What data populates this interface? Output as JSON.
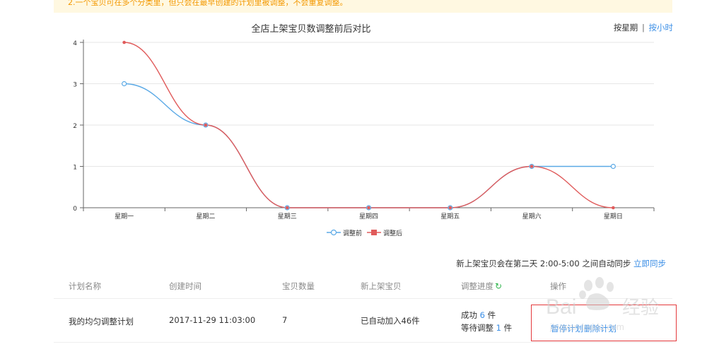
{
  "notice": {
    "text": "2.一个宝贝可在多个分类里，但只会在最早创建的计划里被调整，不会重复调整。"
  },
  "chart_toggle": {
    "week": "按星期",
    "separator": "|",
    "hour": "按小时"
  },
  "chart_data": {
    "type": "line",
    "title": "全店上架宝贝数调整前后对比",
    "categories": [
      "星期一",
      "星期二",
      "星期三",
      "星期四",
      "星期五",
      "星期六",
      "星期日"
    ],
    "yticks": [
      "0",
      "1",
      "2",
      "3",
      "4"
    ],
    "ylim": [
      0,
      4
    ],
    "series": [
      {
        "name": "调整前",
        "color": "#5aa9e6",
        "values": [
          3,
          2,
          0,
          0,
          0,
          1,
          1
        ]
      },
      {
        "name": "调整后",
        "color": "#e05b5b",
        "values": [
          4,
          2,
          0,
          0,
          0,
          1,
          0
        ]
      }
    ],
    "grid": true,
    "legend": "bottom-center"
  },
  "sync": {
    "text": "新上架宝贝会在第二天 2:00-5:00 之间自动同步",
    "link": "立即同步"
  },
  "table": {
    "headers": {
      "name": "计划名称",
      "created": "创建时间",
      "count": "宝贝数量",
      "new_items": "新上架宝贝",
      "progress": "调整进度",
      "ops": "操作"
    },
    "row": {
      "name": "我的均匀调整计划",
      "created": "2017-11-29 11:03:00",
      "count": "7",
      "new_items": "已自动加入46件",
      "success_label": "成功",
      "success_count": "6",
      "success_unit": "件",
      "waiting_label": "等待调整",
      "waiting_count": "1",
      "waiting_unit": "件",
      "op_pause": "暂停计划",
      "op_delete": "删除计划"
    }
  },
  "icons": {
    "refresh": "refresh-icon"
  },
  "colors": {
    "link": "#3a8ee6",
    "notice_text": "#f39800",
    "highlight_border": "#e4393c"
  },
  "watermark": {
    "text": "Bai经验",
    "url": "jingyan.baidu.com"
  }
}
